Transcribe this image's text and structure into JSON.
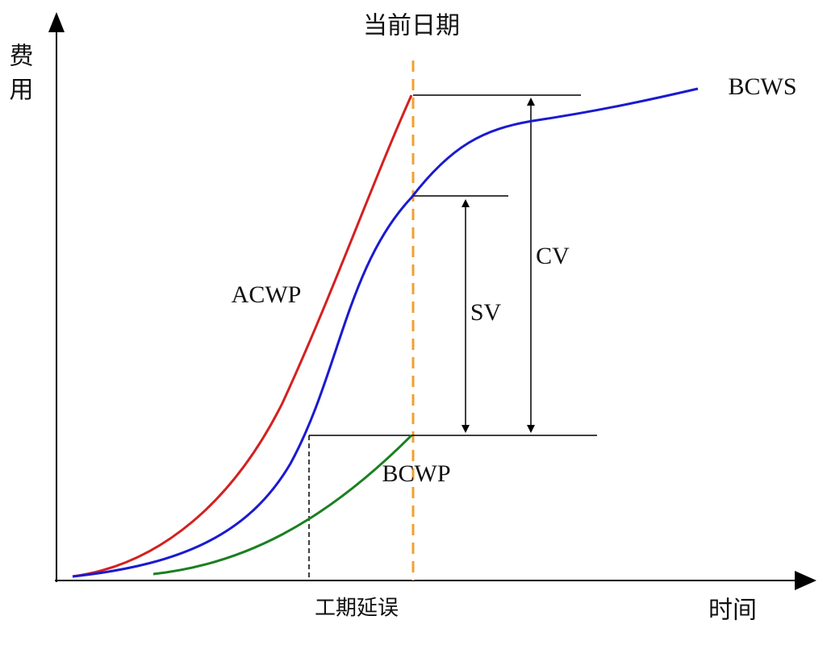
{
  "header": {
    "title": "当前日期"
  },
  "axes": {
    "y_label": "费用",
    "x_label": "时间"
  },
  "curves": {
    "bcws": "BCWS",
    "acwp": "ACWP",
    "bcwp": "BCWP"
  },
  "measures": {
    "cv": "CV",
    "sv": "SV"
  },
  "annotations": {
    "delay": "工期延误"
  }
}
